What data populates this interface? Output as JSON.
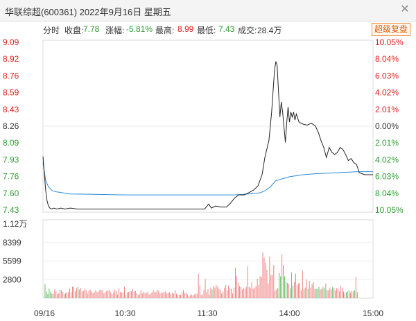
{
  "window": {
    "title": "华联综超(600361) 2022年9月16日 星期五",
    "close_icon": "close-icon"
  },
  "info": {
    "tab_label": "分时",
    "close_label": "收盘:",
    "close_value": "7.78",
    "change_label": "涨幅:",
    "change_value": "-5.81%",
    "high_label": "最高:",
    "high_value": "8.99",
    "low_label": "最低:",
    "low_value": "7.43",
    "volume_label": "成交:",
    "volume_value": "28.4万",
    "restore_button": "超级复盘"
  },
  "colors": {
    "up": "#e02020",
    "down": "#2e9e2e",
    "flat": "#333333",
    "avg_line": "#2b8ad6",
    "price_line": "#222222"
  },
  "chart_data": {
    "type": "line",
    "prev_close": 8.26,
    "price_ticks": [
      "9.09",
      "8.92",
      "8.76",
      "8.59",
      "8.43",
      "8.26",
      "8.09",
      "7.93",
      "7.76",
      "7.60",
      "7.43"
    ],
    "pct_ticks": [
      "10.05%",
      "8.04%",
      "6.03%",
      "4.02%",
      "2.01%",
      "0.00%",
      "2.01%",
      "4.02%",
      "6.03%",
      "8.04%",
      "10.05%"
    ],
    "ylim": [
      7.43,
      9.09
    ],
    "volume_ticks": [
      "1.12万",
      "8399",
      "5599",
      "2800"
    ],
    "volume_ylim": [
      0,
      11200
    ],
    "time_ticks": [
      "09/16",
      "10:30",
      "11:30",
      "14:00",
      "15:00"
    ],
    "price_series": [
      [
        0,
        7.96
      ],
      [
        1,
        7.78
      ],
      [
        2,
        7.62
      ],
      [
        3,
        7.52
      ],
      [
        4,
        7.47
      ],
      [
        5,
        7.45
      ],
      [
        6,
        7.44
      ],
      [
        8,
        7.45
      ],
      [
        10,
        7.44
      ],
      [
        13,
        7.45
      ],
      [
        16,
        7.44
      ],
      [
        20,
        7.45
      ],
      [
        25,
        7.44
      ],
      [
        30,
        7.44
      ],
      [
        40,
        7.44
      ],
      [
        50,
        7.44
      ],
      [
        60,
        7.44
      ],
      [
        70,
        7.44
      ],
      [
        80,
        7.44
      ],
      [
        90,
        7.44
      ],
      [
        100,
        7.44
      ],
      [
        110,
        7.44
      ],
      [
        118,
        7.44
      ],
      [
        121,
        7.49
      ],
      [
        123,
        7.45
      ],
      [
        126,
        7.47
      ],
      [
        130,
        7.46
      ],
      [
        134,
        7.46
      ],
      [
        137,
        7.5
      ],
      [
        140,
        7.55
      ],
      [
        143,
        7.58
      ],
      [
        147,
        7.58
      ],
      [
        150,
        7.6
      ],
      [
        154,
        7.63
      ],
      [
        157,
        7.67
      ],
      [
        160,
        7.78
      ],
      [
        162,
        7.95
      ],
      [
        165,
        8.12
      ],
      [
        167,
        8.4
      ],
      [
        169,
        8.8
      ],
      [
        170,
        8.9
      ],
      [
        171,
        8.86
      ],
      [
        172,
        8.6
      ],
      [
        173,
        8.35
      ],
      [
        174,
        8.5
      ],
      [
        175,
        8.4
      ],
      [
        176,
        8.25
      ],
      [
        177,
        8.1
      ],
      [
        178,
        8.3
      ],
      [
        179,
        8.45
      ],
      [
        180,
        8.3
      ],
      [
        181,
        8.4
      ],
      [
        182,
        8.35
      ],
      [
        183,
        8.4
      ],
      [
        184,
        8.32
      ],
      [
        185,
        8.38
      ],
      [
        187,
        8.3
      ],
      [
        190,
        8.28
      ],
      [
        193,
        8.27
      ],
      [
        196,
        8.29
      ],
      [
        199,
        8.26
      ],
      [
        201,
        8.2
      ],
      [
        203,
        8.12
      ],
      [
        205,
        8.05
      ],
      [
        207,
        7.95
      ],
      [
        209,
        8.05
      ],
      [
        211,
        8.0
      ],
      [
        213,
        7.98
      ],
      [
        215,
        8.0
      ],
      [
        217,
        8.05
      ],
      [
        219,
        8.03
      ],
      [
        221,
        7.98
      ],
      [
        223,
        7.92
      ],
      [
        225,
        7.94
      ],
      [
        227,
        7.9
      ],
      [
        229,
        7.88
      ],
      [
        231,
        7.8
      ],
      [
        233,
        7.79
      ],
      [
        235,
        7.78
      ],
      [
        237,
        7.78
      ],
      [
        239,
        7.78
      ],
      [
        241,
        7.78
      ]
    ],
    "avg_series": [
      [
        0,
        7.9
      ],
      [
        2,
        7.72
      ],
      [
        4,
        7.66
      ],
      [
        7,
        7.62
      ],
      [
        10,
        7.61
      ],
      [
        20,
        7.59
      ],
      [
        40,
        7.585
      ],
      [
        60,
        7.58
      ],
      [
        80,
        7.58
      ],
      [
        100,
        7.58
      ],
      [
        120,
        7.58
      ],
      [
        140,
        7.58
      ],
      [
        150,
        7.59
      ],
      [
        158,
        7.6
      ],
      [
        162,
        7.62
      ],
      [
        166,
        7.66
      ],
      [
        170,
        7.72
      ],
      [
        180,
        7.76
      ],
      [
        190,
        7.78
      ],
      [
        200,
        7.79
      ],
      [
        215,
        7.8
      ],
      [
        230,
        7.81
      ],
      [
        241,
        7.81
      ]
    ],
    "volume": [
      0,
      2100,
      1000,
      620,
      1460,
      960,
      680,
      640,
      1320,
      960,
      620,
      720,
      1260,
      1200,
      940,
      580,
      720,
      920,
      900,
      1460,
      900,
      1740,
      1680,
      1020,
      1500,
      1700,
      1280,
      1540,
      1040,
      1100,
      1400,
      1200,
      680,
      1080,
      1280,
      1020,
      760,
      900,
      1180,
      920,
      980,
      1240,
      1280,
      1140,
      720,
      900,
      1060,
      1200,
      1200,
      900,
      580,
      860,
      1300,
      1080,
      580,
      1500,
      920,
      840,
      820,
      1740,
      480,
      860,
      940,
      1020,
      1040,
      1400,
      1020,
      1100,
      740,
      460,
      640,
      1200,
      720,
      980,
      760,
      820,
      980,
      560,
      600,
      880,
      1220,
      900,
      920,
      1240,
      1100,
      740,
      800,
      820,
      960,
      1000,
      720,
      800,
      920,
      600,
      760,
      700,
      1220,
      680,
      440,
      500,
      520,
      900,
      1220,
      760,
      860,
      560,
      300,
      420,
      560,
      400,
      540,
      680,
      680,
      3700,
      1900,
      460,
      560,
      1200,
      2900,
      880,
      1340,
      500,
      1600,
      1300,
      1800,
      1600,
      2000,
      1700,
      1400,
      1300,
      700,
      1000,
      1600,
      2000,
      1200,
      1900,
      1500,
      1400,
      700,
      1600,
      4600,
      3300,
      2300,
      1800,
      1700,
      1300,
      1500,
      1400,
      1700,
      4800,
      1700,
      1500,
      2400,
      1400,
      1600,
      1800,
      2900,
      2000,
      3300,
      3200,
      6900,
      6100,
      5400,
      4300,
      2200,
      6300,
      3500,
      3500,
      5000,
      1200,
      1300,
      1500,
      3800,
      3300,
      6600,
      5000,
      3300,
      2400,
      2300,
      2100,
      1500,
      3900,
      1900,
      2400,
      3700,
      2000,
      2200,
      2300,
      1200,
      4200,
      1400,
      1600,
      2800,
      1400,
      2600,
      1600,
      2100,
      2400,
      1400,
      1400,
      1400,
      1700,
      1300,
      1400,
      1700,
      1500,
      2200,
      1200,
      1200,
      1600,
      1300,
      1700,
      1500,
      1100,
      1500,
      1400,
      1000,
      1900,
      1600,
      1000,
      700,
      900,
      1000,
      1200,
      800,
      1100,
      1000,
      1200,
      3200,
      900
    ]
  }
}
